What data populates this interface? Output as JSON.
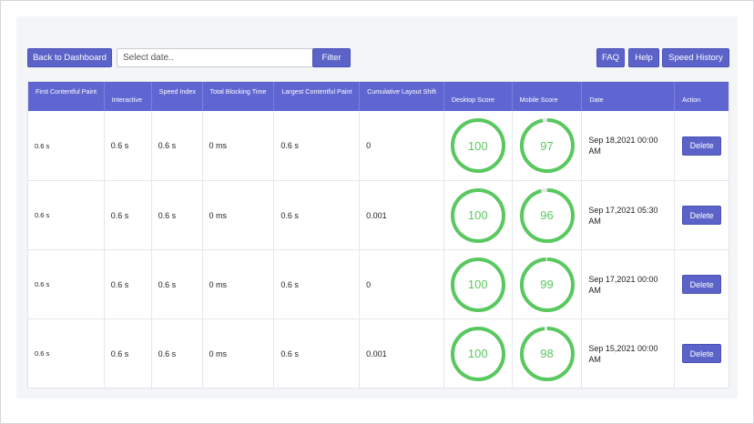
{
  "toolbar": {
    "back_label": "Back to Dashboard",
    "date_placeholder": "Select date..",
    "filter_label": "Filter",
    "faq_label": "FAQ",
    "help_label": "Help",
    "history_label": "Speed History"
  },
  "table": {
    "headers": {
      "fcp": "First Contentful Paint",
      "interactive": "Interactive",
      "speed_index": "Speed Index",
      "tbt": "Total Blocking Time",
      "lcp": "Largest Contentful Paint",
      "cls": "Cumulative Layout Shift",
      "desktop": "Desktop Score",
      "mobile": "Mobile Score",
      "date": "Date",
      "action": "Action"
    },
    "delete_label": "Delete",
    "rows": [
      {
        "fcp": "0.6 s",
        "interactive": "0.6 s",
        "speed_index": "0.6 s",
        "tbt": "0 ms",
        "lcp": "0.6 s",
        "cls": "0",
        "desktop": "100",
        "mobile": "97",
        "date": "Sep 18,2021 00:00 AM"
      },
      {
        "fcp": "0.6 s",
        "interactive": "0.6 s",
        "speed_index": "0.6 s",
        "tbt": "0 ms",
        "lcp": "0.6 s",
        "cls": "0.001",
        "desktop": "100",
        "mobile": "96",
        "date": "Sep 17,2021 05:30 AM"
      },
      {
        "fcp": "0.6 s",
        "interactive": "0.6 s",
        "speed_index": "0.6 s",
        "tbt": "0 ms",
        "lcp": "0.6 s",
        "cls": "0",
        "desktop": "100",
        "mobile": "99",
        "date": "Sep 17,2021 00:00 AM"
      },
      {
        "fcp": "0.6 s",
        "interactive": "0.6 s",
        "speed_index": "0.6 s",
        "tbt": "0 ms",
        "lcp": "0.6 s",
        "cls": "0.001",
        "desktop": "100",
        "mobile": "98",
        "date": "Sep 15,2021 00:00 AM"
      }
    ]
  },
  "colors": {
    "accent": "#5b62c8",
    "header": "#5f66d1",
    "score_good": "#59c85f",
    "track": "#e5e7ea"
  }
}
